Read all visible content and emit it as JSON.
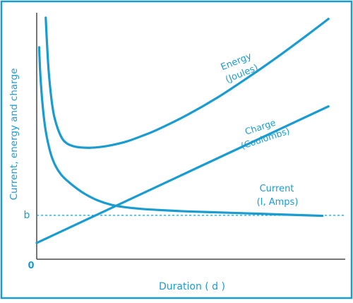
{
  "colors": {
    "accent": "#1a9cd1",
    "axis": "#4a4a4a",
    "background": "#ffffff"
  },
  "chart_data": {
    "type": "line",
    "title": "",
    "xlabel": "Duration ( d )",
    "ylabel": "Current, energy and charge",
    "xlim": [
      0,
      1
    ],
    "ylim": [
      0,
      1
    ],
    "grid": false,
    "legend": "none",
    "origin_label": "0",
    "y_marker": {
      "label": "b",
      "value": 0.178,
      "style": "dashed"
    },
    "series": [
      {
        "name": "Energy (Joules)",
        "label_lines": [
          "Energy",
          "(Joules)"
        ],
        "x": [
          0.03,
          0.034,
          0.04,
          0.05,
          0.06,
          0.08,
          0.1,
          0.13,
          0.17,
          0.21,
          0.25,
          0.3,
          0.35,
          0.4,
          0.5,
          0.6,
          0.7,
          0.8,
          0.9,
          0.97
        ],
        "y": [
          0.98,
          0.88,
          0.76,
          0.64,
          0.57,
          0.5,
          0.47,
          0.456,
          0.452,
          0.455,
          0.463,
          0.478,
          0.5,
          0.525,
          0.585,
          0.655,
          0.735,
          0.82,
          0.91,
          0.975
        ]
      },
      {
        "name": "Charge (Coulombs)",
        "label_lines": [
          "Charge",
          "(Coulombs)"
        ],
        "x": [
          0.0,
          0.97
        ],
        "y": [
          0.066,
          0.62
        ]
      },
      {
        "name": "Current (I, Amps)",
        "label_lines": [
          "Current",
          "(I, Amps)"
        ],
        "x": [
          0.008,
          0.012,
          0.02,
          0.03,
          0.045,
          0.06,
          0.08,
          0.1,
          0.13,
          0.16,
          0.2,
          0.25,
          0.3,
          0.35,
          0.4,
          0.5,
          0.6,
          0.7,
          0.8,
          0.9,
          0.95
        ],
        "y": [
          0.86,
          0.75,
          0.62,
          0.52,
          0.435,
          0.385,
          0.345,
          0.32,
          0.29,
          0.265,
          0.24,
          0.22,
          0.21,
          0.204,
          0.2,
          0.194,
          0.19,
          0.186,
          0.182,
          0.178,
          0.176
        ]
      }
    ]
  }
}
